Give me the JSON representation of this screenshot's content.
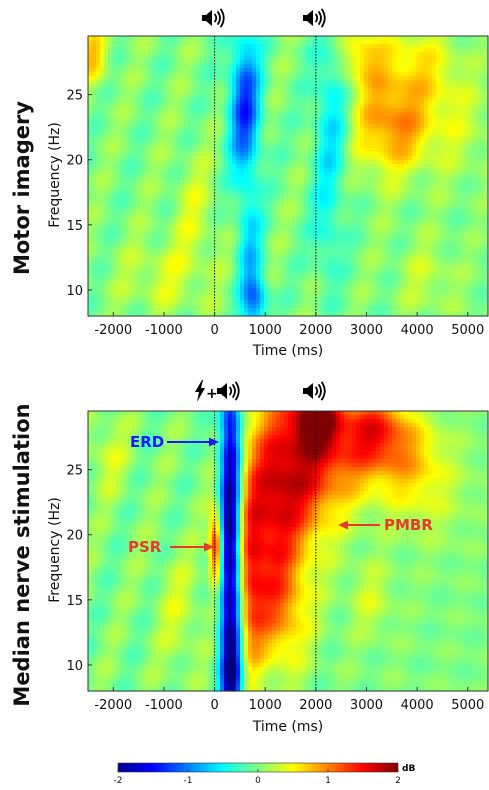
{
  "chart_data": [
    {
      "type": "heatmap",
      "row_label": "Motor imagery",
      "xlabel": "Time (ms)",
      "ylabel": "Frequency (Hz)",
      "xlim": [
        -2500,
        5400
      ],
      "ylim": [
        8,
        29.5
      ],
      "xticks": [
        -2000,
        -1000,
        0,
        1000,
        2000,
        3000,
        4000,
        5000
      ],
      "xtick_labels": [
        "-2000",
        "-1000",
        "0",
        "1000",
        "2000",
        "3000",
        "4000",
        "5000"
      ],
      "yticks": [
        10,
        15,
        20,
        25
      ],
      "ytick_labels": [
        "10",
        "15",
        "20",
        "25"
      ],
      "event_lines": [
        0,
        2000
      ],
      "event_markers": [
        {
          "x": 0,
          "icon": "speaker-icon"
        },
        {
          "x": 2000,
          "icon": "speaker-icon"
        }
      ],
      "blobs": [
        {
          "t": 600,
          "f": 24,
          "st": 220,
          "sf": 4,
          "a": -1.3
        },
        {
          "t": 700,
          "f": 13,
          "st": 180,
          "sf": 3,
          "a": -0.6
        },
        {
          "t": 800,
          "f": 9,
          "st": 180,
          "sf": 1.5,
          "a": -0.9
        },
        {
          "t": 2300,
          "f": 23,
          "st": 250,
          "sf": 5,
          "a": -0.6
        },
        {
          "t": 2200,
          "f": 14,
          "st": 200,
          "sf": 3,
          "a": -0.3
        },
        {
          "t": 3300,
          "f": 23,
          "st": 450,
          "sf": 3,
          "a": 0.7
        },
        {
          "t": 4000,
          "f": 27,
          "st": 500,
          "sf": 2.5,
          "a": 0.5
        },
        {
          "t": 3800,
          "f": 22,
          "st": 400,
          "sf": 2,
          "a": 0.4
        },
        {
          "t": 2900,
          "f": 28,
          "st": 300,
          "sf": 1.5,
          "a": 0.6
        },
        {
          "t": 4700,
          "f": 23,
          "st": 500,
          "sf": 3,
          "a": 0.3
        },
        {
          "t": -2400,
          "f": 28,
          "st": 200,
          "sf": 1.5,
          "a": 0.7
        },
        {
          "t": -1000,
          "f": 11,
          "st": 600,
          "sf": 2,
          "a": 0.3
        },
        {
          "t": -400,
          "f": 16,
          "st": 300,
          "sf": 3,
          "a": 0.3
        },
        {
          "t": 4200,
          "f": 11,
          "st": 400,
          "sf": 2,
          "a": 0.25
        }
      ]
    },
    {
      "type": "heatmap",
      "row_label": "Median nerve stimulation",
      "xlabel": "Time (ms)",
      "ylabel": "Frequency (Hz)",
      "xlim": [
        -2500,
        5400
      ],
      "ylim": [
        8,
        29.5
      ],
      "xticks": [
        -2000,
        -1000,
        0,
        1000,
        2000,
        3000,
        4000,
        5000
      ],
      "xtick_labels": [
        "-2000",
        "-1000",
        "0",
        "1000",
        "2000",
        "3000",
        "4000",
        "5000"
      ],
      "yticks": [
        10,
        15,
        20,
        25
      ],
      "ytick_labels": [
        "10",
        "15",
        "20",
        "25"
      ],
      "event_lines": [
        0,
        2000
      ],
      "event_markers": [
        {
          "x": 0,
          "icon": "lightning-speaker-icon"
        },
        {
          "x": 2000,
          "icon": "speaker-icon"
        }
      ],
      "annotations": [
        {
          "text": "ERD",
          "color": "#1a1aff",
          "x": 100,
          "f": 26.7
        },
        {
          "text": "PSR",
          "color": "#e83a2a",
          "x": 0,
          "f": 19.2
        },
        {
          "text": "PMBR",
          "color": "#e83a2a",
          "x": 2400,
          "f": 20.8
        }
      ],
      "blobs": [
        {
          "t": 320,
          "f": 19,
          "st": 150,
          "sf": 12,
          "a": -2.3
        },
        {
          "t": 380,
          "f": 9,
          "st": 150,
          "sf": 2,
          "a": -0.6
        },
        {
          "t": 30,
          "f": 19,
          "st": 90,
          "sf": 2,
          "a": 1.6
        },
        {
          "t": 1100,
          "f": 22,
          "st": 450,
          "sf": 6,
          "a": 1.3
        },
        {
          "t": 700,
          "f": 16,
          "st": 200,
          "sf": 5,
          "a": 0.8
        },
        {
          "t": 1800,
          "f": 25,
          "st": 500,
          "sf": 4,
          "a": 1.1
        },
        {
          "t": 2000,
          "f": 29,
          "st": 300,
          "sf": 1.5,
          "a": 1.5
        },
        {
          "t": 2700,
          "f": 27,
          "st": 600,
          "sf": 3,
          "a": 0.9
        },
        {
          "t": 3200,
          "f": 28,
          "st": 400,
          "sf": 2,
          "a": 0.8
        },
        {
          "t": 3800,
          "f": 26,
          "st": 400,
          "sf": 2.5,
          "a": 0.5
        },
        {
          "t": 4300,
          "f": 24,
          "st": 500,
          "sf": 3,
          "a": 0.3
        },
        {
          "t": 1300,
          "f": 14,
          "st": 400,
          "sf": 3,
          "a": 0.6
        },
        {
          "t": -2100,
          "f": 26,
          "st": 300,
          "sf": 2,
          "a": 0.3
        },
        {
          "t": -700,
          "f": 14,
          "st": 300,
          "sf": 3,
          "a": 0.3
        },
        {
          "t": 3100,
          "f": 15,
          "st": 300,
          "sf": 2,
          "a": 0.3
        }
      ]
    }
  ],
  "colorbar": {
    "label": "dB",
    "min": -2,
    "max": 2,
    "ticks": [
      -2,
      -1,
      0,
      1,
      2
    ],
    "tick_labels": [
      "-2",
      "-1",
      "0",
      "1",
      "2"
    ],
    "colormap": "jet"
  }
}
